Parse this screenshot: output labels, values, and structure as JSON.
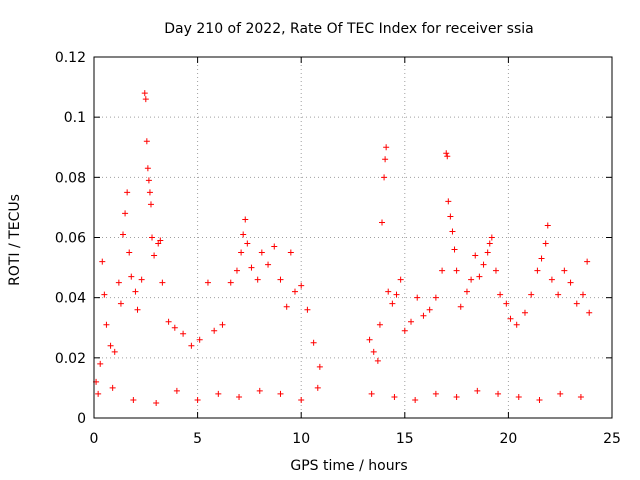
{
  "chart_data": {
    "type": "scatter",
    "title": "Day 210 of 2022, Rate Of TEC Index for receiver ssia",
    "xlabel": "GPS time / hours",
    "ylabel": "ROTI / TECUs",
    "xlim": [
      0,
      25
    ],
    "ylim": [
      0,
      0.12
    ],
    "xticks": [
      "0",
      "5",
      "10",
      "15",
      "20",
      "25"
    ],
    "yticks": [
      "0",
      "0.02",
      "0.04",
      "0.06",
      "0.08",
      "0.1",
      "0.12"
    ],
    "grid": true,
    "marker": "+",
    "color": "#ff0000",
    "data_gap_hours": [
      11.0,
      13.2
    ],
    "series": [
      {
        "points": [
          [
            0.1,
            0.012
          ],
          [
            0.3,
            0.018
          ],
          [
            0.4,
            0.052
          ],
          [
            0.5,
            0.041
          ],
          [
            0.6,
            0.031
          ],
          [
            0.8,
            0.024
          ],
          [
            1.0,
            0.022
          ],
          [
            1.2,
            0.045
          ],
          [
            1.3,
            0.038
          ],
          [
            1.4,
            0.061
          ],
          [
            1.5,
            0.068
          ],
          [
            1.6,
            0.075
          ],
          [
            1.7,
            0.055
          ],
          [
            1.8,
            0.047
          ],
          [
            2.0,
            0.042
          ],
          [
            2.1,
            0.036
          ],
          [
            2.3,
            0.046
          ],
          [
            2.45,
            0.108
          ],
          [
            2.5,
            0.106
          ],
          [
            2.55,
            0.092
          ],
          [
            2.6,
            0.083
          ],
          [
            2.65,
            0.079
          ],
          [
            2.7,
            0.075
          ],
          [
            2.75,
            0.071
          ],
          [
            2.8,
            0.06
          ],
          [
            2.9,
            0.054
          ],
          [
            3.1,
            0.058
          ],
          [
            3.2,
            0.059
          ],
          [
            3.3,
            0.045
          ],
          [
            3.6,
            0.032
          ],
          [
            3.9,
            0.03
          ],
          [
            4.3,
            0.028
          ],
          [
            4.7,
            0.024
          ],
          [
            5.1,
            0.026
          ],
          [
            5.5,
            0.045
          ],
          [
            5.8,
            0.029
          ],
          [
            6.2,
            0.031
          ],
          [
            6.6,
            0.045
          ],
          [
            6.9,
            0.049
          ],
          [
            7.1,
            0.055
          ],
          [
            7.2,
            0.061
          ],
          [
            7.3,
            0.066
          ],
          [
            7.4,
            0.058
          ],
          [
            7.6,
            0.05
          ],
          [
            7.9,
            0.046
          ],
          [
            8.1,
            0.055
          ],
          [
            8.4,
            0.051
          ],
          [
            8.7,
            0.057
          ],
          [
            9.0,
            0.046
          ],
          [
            9.3,
            0.037
          ],
          [
            9.5,
            0.055
          ],
          [
            9.7,
            0.042
          ],
          [
            10.0,
            0.044
          ],
          [
            10.3,
            0.036
          ],
          [
            10.6,
            0.025
          ],
          [
            10.9,
            0.017
          ],
          [
            0.2,
            0.008
          ],
          [
            0.9,
            0.01
          ],
          [
            1.9,
            0.006
          ],
          [
            3.0,
            0.005
          ],
          [
            4.0,
            0.009
          ],
          [
            5.0,
            0.006
          ],
          [
            6.0,
            0.008
          ],
          [
            7.0,
            0.007
          ],
          [
            8.0,
            0.009
          ],
          [
            9.0,
            0.008
          ],
          [
            10.0,
            0.006
          ],
          [
            10.8,
            0.01
          ],
          [
            13.3,
            0.026
          ],
          [
            13.5,
            0.022
          ],
          [
            13.7,
            0.019
          ],
          [
            13.8,
            0.031
          ],
          [
            13.9,
            0.065
          ],
          [
            14.0,
            0.08
          ],
          [
            14.05,
            0.086
          ],
          [
            14.1,
            0.09
          ],
          [
            14.2,
            0.042
          ],
          [
            14.4,
            0.038
          ],
          [
            14.6,
            0.041
          ],
          [
            14.8,
            0.046
          ],
          [
            15.0,
            0.029
          ],
          [
            15.3,
            0.032
          ],
          [
            15.6,
            0.04
          ],
          [
            15.9,
            0.034
          ],
          [
            16.2,
            0.036
          ],
          [
            16.5,
            0.04
          ],
          [
            16.8,
            0.049
          ],
          [
            17.0,
            0.088
          ],
          [
            17.05,
            0.087
          ],
          [
            17.1,
            0.072
          ],
          [
            17.2,
            0.067
          ],
          [
            17.3,
            0.062
          ],
          [
            17.4,
            0.056
          ],
          [
            17.5,
            0.049
          ],
          [
            17.7,
            0.037
          ],
          [
            18.0,
            0.042
          ],
          [
            18.2,
            0.046
          ],
          [
            18.4,
            0.054
          ],
          [
            18.6,
            0.047
          ],
          [
            18.8,
            0.051
          ],
          [
            19.0,
            0.055
          ],
          [
            19.1,
            0.058
          ],
          [
            19.2,
            0.06
          ],
          [
            19.4,
            0.049
          ],
          [
            19.6,
            0.041
          ],
          [
            19.9,
            0.038
          ],
          [
            20.1,
            0.033
          ],
          [
            20.4,
            0.031
          ],
          [
            20.8,
            0.035
          ],
          [
            21.1,
            0.041
          ],
          [
            21.4,
            0.049
          ],
          [
            21.6,
            0.053
          ],
          [
            21.8,
            0.058
          ],
          [
            21.9,
            0.064
          ],
          [
            22.1,
            0.046
          ],
          [
            22.4,
            0.041
          ],
          [
            22.7,
            0.049
          ],
          [
            23.0,
            0.045
          ],
          [
            23.3,
            0.038
          ],
          [
            23.6,
            0.041
          ],
          [
            23.8,
            0.052
          ],
          [
            23.9,
            0.035
          ],
          [
            13.4,
            0.008
          ],
          [
            14.5,
            0.007
          ],
          [
            15.5,
            0.006
          ],
          [
            16.5,
            0.008
          ],
          [
            17.5,
            0.007
          ],
          [
            18.5,
            0.009
          ],
          [
            19.5,
            0.008
          ],
          [
            20.5,
            0.007
          ],
          [
            21.5,
            0.006
          ],
          [
            22.5,
            0.008
          ],
          [
            23.5,
            0.007
          ]
        ]
      }
    ]
  }
}
